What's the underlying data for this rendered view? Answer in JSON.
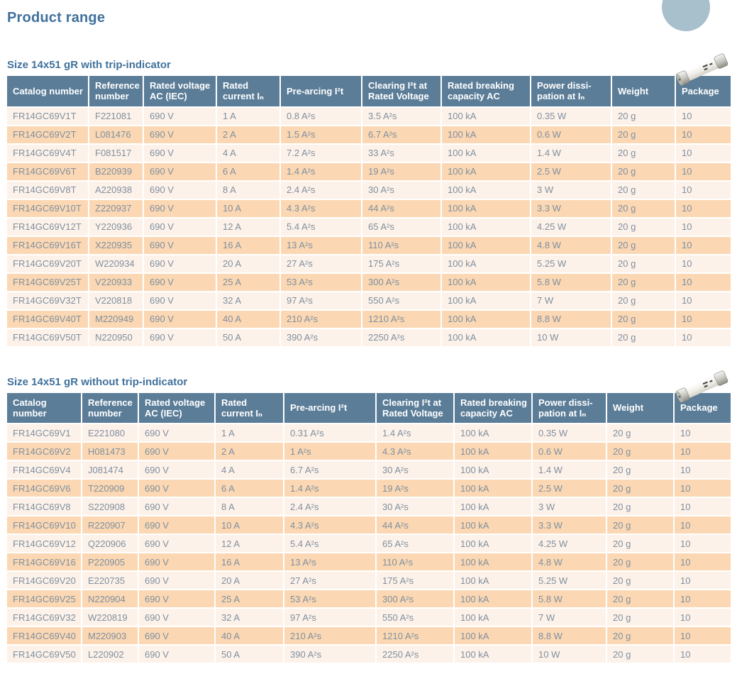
{
  "page": {
    "title": "Product range"
  },
  "columns": [
    "Catalog number",
    "Reference number",
    "Rated voltage AC (IEC)",
    "Rated current Iₙ",
    "Pre-arcing I²t",
    "Clearing I²t at Rated Voltage",
    "Rated breaking capacity AC",
    "Power dissi-pation at Iₙ",
    "Weight",
    "Package"
  ],
  "tables": [
    {
      "title": "Size 14x51 gR with trip-indicator",
      "rows": [
        [
          "FR14GC69V1T",
          "F221081",
          "690 V",
          "1 A",
          "0.8 A²s",
          "3.5 A²s",
          "100 kA",
          "0.35 W",
          "20 g",
          "10"
        ],
        [
          "FR14GC69V2T",
          "L081476",
          "690 V",
          "2 A",
          "1.5 A²s",
          "6.7 A²s",
          "100 kA",
          "0.6 W",
          "20 g",
          "10"
        ],
        [
          "FR14GC69V4T",
          "F081517",
          "690 V",
          "4 A",
          "7.2 A²s",
          "33 A²s",
          "100 kA",
          "1.4 W",
          "20 g",
          "10"
        ],
        [
          "FR14GC69V6T",
          "B220939",
          "690 V",
          "6 A",
          "1.4 A²s",
          "19 A²s",
          "100 kA",
          "2.5 W",
          "20 g",
          "10"
        ],
        [
          "FR14GC69V8T",
          "A220938",
          "690 V",
          "8 A",
          "2.4 A²s",
          "30 A²s",
          "100 kA",
          "3 W",
          "20 g",
          "10"
        ],
        [
          "FR14GC69V10T",
          "Z220937",
          "690 V",
          "10 A",
          "4.3 A²s",
          "44 A²s",
          "100 kA",
          "3.3 W",
          "20 g",
          "10"
        ],
        [
          "FR14GC69V12T",
          "Y220936",
          "690 V",
          "12 A",
          "5.4 A²s",
          "65 A²s",
          "100 kA",
          "4.25 W",
          "20 g",
          "10"
        ],
        [
          "FR14GC69V16T",
          "X220935",
          "690 V",
          "16 A",
          "13 A²s",
          "110 A²s",
          "100 kA",
          "4.8 W",
          "20 g",
          "10"
        ],
        [
          "FR14GC69V20T",
          "W220934",
          "690 V",
          "20 A",
          "27 A²s",
          "175 A²s",
          "100 kA",
          "5.25 W",
          "20 g",
          "10"
        ],
        [
          "FR14GC69V25T",
          "V220933",
          "690 V",
          "25 A",
          "53 A²s",
          "300 A²s",
          "100 kA",
          "5.8 W",
          "20 g",
          "10"
        ],
        [
          "FR14GC69V32T",
          "V220818",
          "690 V",
          "32 A",
          "97 A²s",
          "550 A²s",
          "100 kA",
          "7 W",
          "20 g",
          "10"
        ],
        [
          "FR14GC69V40T",
          "M220949",
          "690 V",
          "40 A",
          "210 A²s",
          "1210 A²s",
          "100 kA",
          "8.8 W",
          "20 g",
          "10"
        ],
        [
          "FR14GC69V50T",
          "N220950",
          "690 V",
          "50 A",
          "390 A²s",
          "2250 A²s",
          "100 kA",
          "10 W",
          "20 g",
          "10"
        ]
      ]
    },
    {
      "title": "Size 14x51 gR without trip-indicator",
      "rows": [
        [
          "FR14GC69V1",
          "E221080",
          "690 V",
          "1 A",
          "0.31 A²s",
          "1.4 A²s",
          "100 kA",
          "0.35 W",
          "20 g",
          "10"
        ],
        [
          "FR14GC69V2",
          "H081473",
          "690 V",
          "2 A",
          "1 A²s",
          "4.3 A²s",
          "100 kA",
          "0.6 W",
          "20 g",
          "10"
        ],
        [
          "FR14GC69V4",
          "J081474",
          "690 V",
          "4 A",
          "6.7 A²s",
          "30 A²s",
          "100 kA",
          "1.4 W",
          "20 g",
          "10"
        ],
        [
          "FR14GC69V6",
          "T220909",
          "690 V",
          "6 A",
          "1.4 A²s",
          "19 A²s",
          "100 kA",
          "2.5 W",
          "20 g",
          "10"
        ],
        [
          "FR14GC69V8",
          "S220908",
          "690 V",
          "8 A",
          "2.4 A²s",
          "30 A²s",
          "100 kA",
          "3 W",
          "20 g",
          "10"
        ],
        [
          "FR14GC69V10",
          "R220907",
          "690 V",
          "10 A",
          "4.3 A²s",
          "44 A²s",
          "100 kA",
          "3.3 W",
          "20 g",
          "10"
        ],
        [
          "FR14GC69V12",
          "Q220906",
          "690 V",
          "12 A",
          "5.4 A²s",
          "65 A²s",
          "100 kA",
          "4.25 W",
          "20 g",
          "10"
        ],
        [
          "FR14GC69V16",
          "P220905",
          "690 V",
          "16 A",
          "13 A²s",
          "110 A²s",
          "100 kA",
          "4.8 W",
          "20 g",
          "10"
        ],
        [
          "FR14GC69V20",
          "E220735",
          "690 V",
          "20 A",
          "27 A²s",
          "175 A²s",
          "100 kA",
          "5.25 W",
          "20 g",
          "10"
        ],
        [
          "FR14GC69V25",
          "N220904",
          "690 V",
          "25 A",
          "53 A²s",
          "300 A²s",
          "100 kA",
          "5.8 W",
          "20 g",
          "10"
        ],
        [
          "FR14GC69V32",
          "W220819",
          "690 V",
          "32 A",
          "97 A²s",
          "550 A²s",
          "100 kA",
          "7 W",
          "20 g",
          "10"
        ],
        [
          "FR14GC69V40",
          "M220903",
          "690 V",
          "40 A",
          "210 A²s",
          "1210 A²s",
          "100 kA",
          "8.8 W",
          "20 g",
          "10"
        ],
        [
          "FR14GC69V50",
          "L220902",
          "690 V",
          "50 A",
          "390 A²s",
          "2250 A²s",
          "100 kA",
          "10 W",
          "20 g",
          "10"
        ]
      ]
    }
  ],
  "colors": {
    "header_bg": "#5b7d98",
    "row_odd": "#fdf2e9",
    "row_even": "#fbd8b3",
    "heading": "#40719c",
    "cell": "#7f8fa0"
  }
}
